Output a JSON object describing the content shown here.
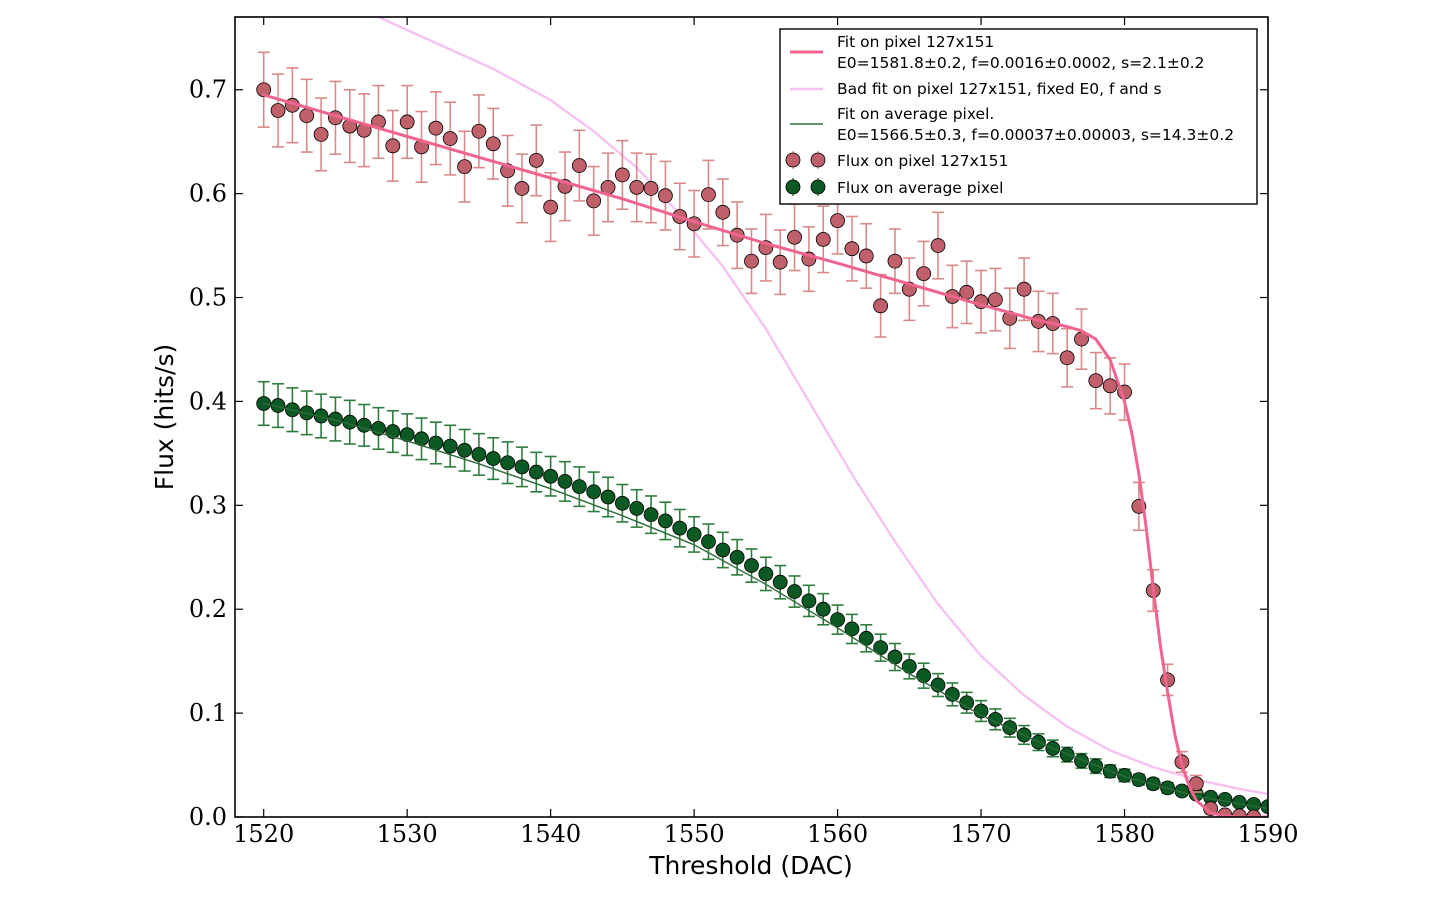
{
  "chart_data": {
    "type": "scatter",
    "xlabel": "Threshold (DAC)",
    "ylabel": "Flux (hits/s)",
    "xlim": [
      1518,
      1590
    ],
    "ylim": [
      0.0,
      0.77
    ],
    "xticks": [
      1520,
      1530,
      1540,
      1550,
      1560,
      1570,
      1580,
      1590
    ],
    "xtick_labels": [
      "1520",
      "1530",
      "1540",
      "1550",
      "1560",
      "1570",
      "1580",
      "1590"
    ],
    "yticks": [
      0.0,
      0.1,
      0.2,
      0.3,
      0.4,
      0.5,
      0.6,
      0.7
    ],
    "ytick_labels": [
      "0.0",
      "0.1",
      "0.2",
      "0.3",
      "0.4",
      "0.5",
      "0.6",
      "0.7"
    ],
    "legend_position": "top-right",
    "colors": {
      "pixel_points": "#c0606a",
      "pixel_errors": "#d98a88",
      "average_points": "#0b5a24",
      "average_errors": "#2e7d3e",
      "fit_pixel": "#f0648e",
      "bad_fit": "#f7c2f2",
      "fit_average": "#2e6b3a"
    },
    "series": [
      {
        "name": "Fit on pixel 127x151",
        "kind": "line",
        "legend_lines": [
          "Fit on pixel 127x151",
          "E0=1581.8±0.2, f=0.0016±0.0002, s=2.1±0.2"
        ],
        "x": [
          1520,
          1525,
          1530,
          1535,
          1540,
          1545,
          1550,
          1555,
          1560,
          1565,
          1570,
          1574,
          1576,
          1577,
          1578,
          1579,
          1580,
          1580.5,
          1581,
          1581.5,
          1582,
          1582.5,
          1583,
          1583.5,
          1584,
          1584.5,
          1585,
          1586,
          1587,
          1588,
          1589,
          1590
        ],
        "y": [
          0.695,
          0.675,
          0.655,
          0.635,
          0.615,
          0.595,
          0.573,
          0.552,
          0.533,
          0.513,
          0.493,
          0.478,
          0.472,
          0.468,
          0.46,
          0.44,
          0.4,
          0.37,
          0.33,
          0.28,
          0.22,
          0.165,
          0.12,
          0.08,
          0.05,
          0.03,
          0.016,
          0.004,
          0.001,
          0.0,
          0.0,
          0.0
        ]
      },
      {
        "name": "Bad fit on pixel 127x151, fixed E0, f and s",
        "kind": "line",
        "legend_lines": [
          "Bad fit on pixel 127x151, fixed E0, f and s"
        ],
        "x": [
          1528,
          1532,
          1536,
          1540,
          1543,
          1546,
          1549,
          1552,
          1555,
          1558,
          1561,
          1564,
          1567,
          1570,
          1573,
          1576,
          1579,
          1582,
          1585,
          1588,
          1590
        ],
        "y": [
          0.77,
          0.745,
          0.72,
          0.69,
          0.66,
          0.625,
          0.58,
          0.53,
          0.47,
          0.4,
          0.33,
          0.265,
          0.205,
          0.155,
          0.117,
          0.087,
          0.064,
          0.048,
          0.036,
          0.027,
          0.022
        ]
      },
      {
        "name": "Fit on average pixel",
        "kind": "line",
        "legend_lines": [
          "Fit on average pixel.",
          "E0=1566.5±0.3, f=0.00037±0.00003, s=14.3±0.2"
        ],
        "x": [
          1520,
          1525,
          1530,
          1535,
          1540,
          1545,
          1550,
          1555,
          1560,
          1565,
          1570,
          1575,
          1580,
          1585,
          1590
        ],
        "y": [
          0.398,
          0.382,
          0.362,
          0.34,
          0.316,
          0.29,
          0.262,
          0.224,
          0.182,
          0.138,
          0.098,
          0.066,
          0.039,
          0.02,
          0.008
        ]
      },
      {
        "name": "Flux on pixel 127x151",
        "kind": "errorbar",
        "legend_lines": [
          "Flux on pixel 127x151"
        ],
        "x": [
          1520,
          1521,
          1522,
          1523,
          1524,
          1525,
          1526,
          1527,
          1528,
          1529,
          1530,
          1531,
          1532,
          1533,
          1534,
          1535,
          1536,
          1537,
          1538,
          1539,
          1540,
          1541,
          1542,
          1543,
          1544,
          1545,
          1546,
          1547,
          1548,
          1549,
          1550,
          1551,
          1552,
          1553,
          1554,
          1555,
          1556,
          1557,
          1558,
          1559,
          1560,
          1561,
          1562,
          1563,
          1564,
          1565,
          1566,
          1567,
          1568,
          1569,
          1570,
          1571,
          1572,
          1573,
          1574,
          1575,
          1576,
          1577,
          1578,
          1579,
          1580,
          1581,
          1582,
          1583,
          1584,
          1585,
          1586,
          1587,
          1588,
          1589
        ],
        "y": [
          0.7,
          0.68,
          0.685,
          0.675,
          0.657,
          0.673,
          0.665,
          0.661,
          0.669,
          0.646,
          0.669,
          0.645,
          0.663,
          0.653,
          0.626,
          0.66,
          0.648,
          0.622,
          0.605,
          0.632,
          0.587,
          0.607,
          0.627,
          0.593,
          0.606,
          0.618,
          0.606,
          0.605,
          0.598,
          0.578,
          0.571,
          0.599,
          0.582,
          0.56,
          0.535,
          0.548,
          0.534,
          0.558,
          0.537,
          0.556,
          0.574,
          0.547,
          0.54,
          0.492,
          0.535,
          0.508,
          0.523,
          0.55,
          0.501,
          0.505,
          0.496,
          0.498,
          0.48,
          0.508,
          0.477,
          0.475,
          0.442,
          0.46,
          0.42,
          0.415,
          0.409,
          0.299,
          0.218,
          0.132,
          0.053,
          0.032,
          0.008,
          0.002,
          0.001,
          0.0
        ],
        "err": [
          0.036,
          0.035,
          0.036,
          0.035,
          0.035,
          0.035,
          0.035,
          0.035,
          0.035,
          0.034,
          0.035,
          0.034,
          0.035,
          0.035,
          0.034,
          0.035,
          0.034,
          0.034,
          0.033,
          0.034,
          0.033,
          0.033,
          0.034,
          0.033,
          0.033,
          0.033,
          0.033,
          0.033,
          0.033,
          0.032,
          0.032,
          0.033,
          0.032,
          0.032,
          0.031,
          0.032,
          0.031,
          0.032,
          0.031,
          0.032,
          0.032,
          0.031,
          0.031,
          0.03,
          0.031,
          0.03,
          0.031,
          0.032,
          0.03,
          0.03,
          0.03,
          0.03,
          0.029,
          0.03,
          0.029,
          0.029,
          0.028,
          0.029,
          0.027,
          0.027,
          0.027,
          0.023,
          0.02,
          0.015,
          0.01,
          0.008,
          0.004,
          0.002,
          0.001,
          0.0
        ]
      },
      {
        "name": "Flux on average pixel",
        "kind": "errorbar",
        "legend_lines": [
          "Flux on average pixel"
        ],
        "x": [
          1520,
          1521,
          1522,
          1523,
          1524,
          1525,
          1526,
          1527,
          1528,
          1529,
          1530,
          1531,
          1532,
          1533,
          1534,
          1535,
          1536,
          1537,
          1538,
          1539,
          1540,
          1541,
          1542,
          1543,
          1544,
          1545,
          1546,
          1547,
          1548,
          1549,
          1550,
          1551,
          1552,
          1553,
          1554,
          1555,
          1556,
          1557,
          1558,
          1559,
          1560,
          1561,
          1562,
          1563,
          1564,
          1565,
          1566,
          1567,
          1568,
          1569,
          1570,
          1571,
          1572,
          1573,
          1574,
          1575,
          1576,
          1577,
          1578,
          1579,
          1580,
          1581,
          1582,
          1583,
          1584,
          1585,
          1586,
          1587,
          1588,
          1589,
          1590
        ],
        "y": [
          0.398,
          0.396,
          0.392,
          0.389,
          0.386,
          0.383,
          0.38,
          0.377,
          0.374,
          0.371,
          0.368,
          0.364,
          0.36,
          0.357,
          0.353,
          0.349,
          0.345,
          0.341,
          0.337,
          0.332,
          0.328,
          0.323,
          0.318,
          0.313,
          0.308,
          0.302,
          0.297,
          0.291,
          0.285,
          0.278,
          0.272,
          0.265,
          0.257,
          0.25,
          0.242,
          0.234,
          0.226,
          0.217,
          0.208,
          0.2,
          0.19,
          0.181,
          0.172,
          0.163,
          0.154,
          0.145,
          0.136,
          0.127,
          0.118,
          0.11,
          0.102,
          0.094,
          0.086,
          0.079,
          0.072,
          0.066,
          0.06,
          0.054,
          0.049,
          0.044,
          0.04,
          0.036,
          0.032,
          0.028,
          0.025,
          0.022,
          0.019,
          0.017,
          0.014,
          0.012,
          0.01
        ],
        "err": [
          0.021,
          0.021,
          0.021,
          0.021,
          0.021,
          0.021,
          0.021,
          0.02,
          0.02,
          0.02,
          0.02,
          0.02,
          0.02,
          0.02,
          0.02,
          0.02,
          0.02,
          0.02,
          0.019,
          0.019,
          0.019,
          0.019,
          0.019,
          0.019,
          0.019,
          0.018,
          0.018,
          0.018,
          0.018,
          0.018,
          0.017,
          0.017,
          0.017,
          0.017,
          0.016,
          0.016,
          0.016,
          0.015,
          0.015,
          0.015,
          0.014,
          0.014,
          0.013,
          0.013,
          0.013,
          0.012,
          0.012,
          0.011,
          0.011,
          0.01,
          0.01,
          0.01,
          0.009,
          0.009,
          0.008,
          0.008,
          0.007,
          0.007,
          0.007,
          0.006,
          0.006,
          0.005,
          0.005,
          0.005,
          0.004,
          0.004,
          0.004,
          0.003,
          0.003,
          0.003,
          0.003
        ]
      }
    ]
  }
}
